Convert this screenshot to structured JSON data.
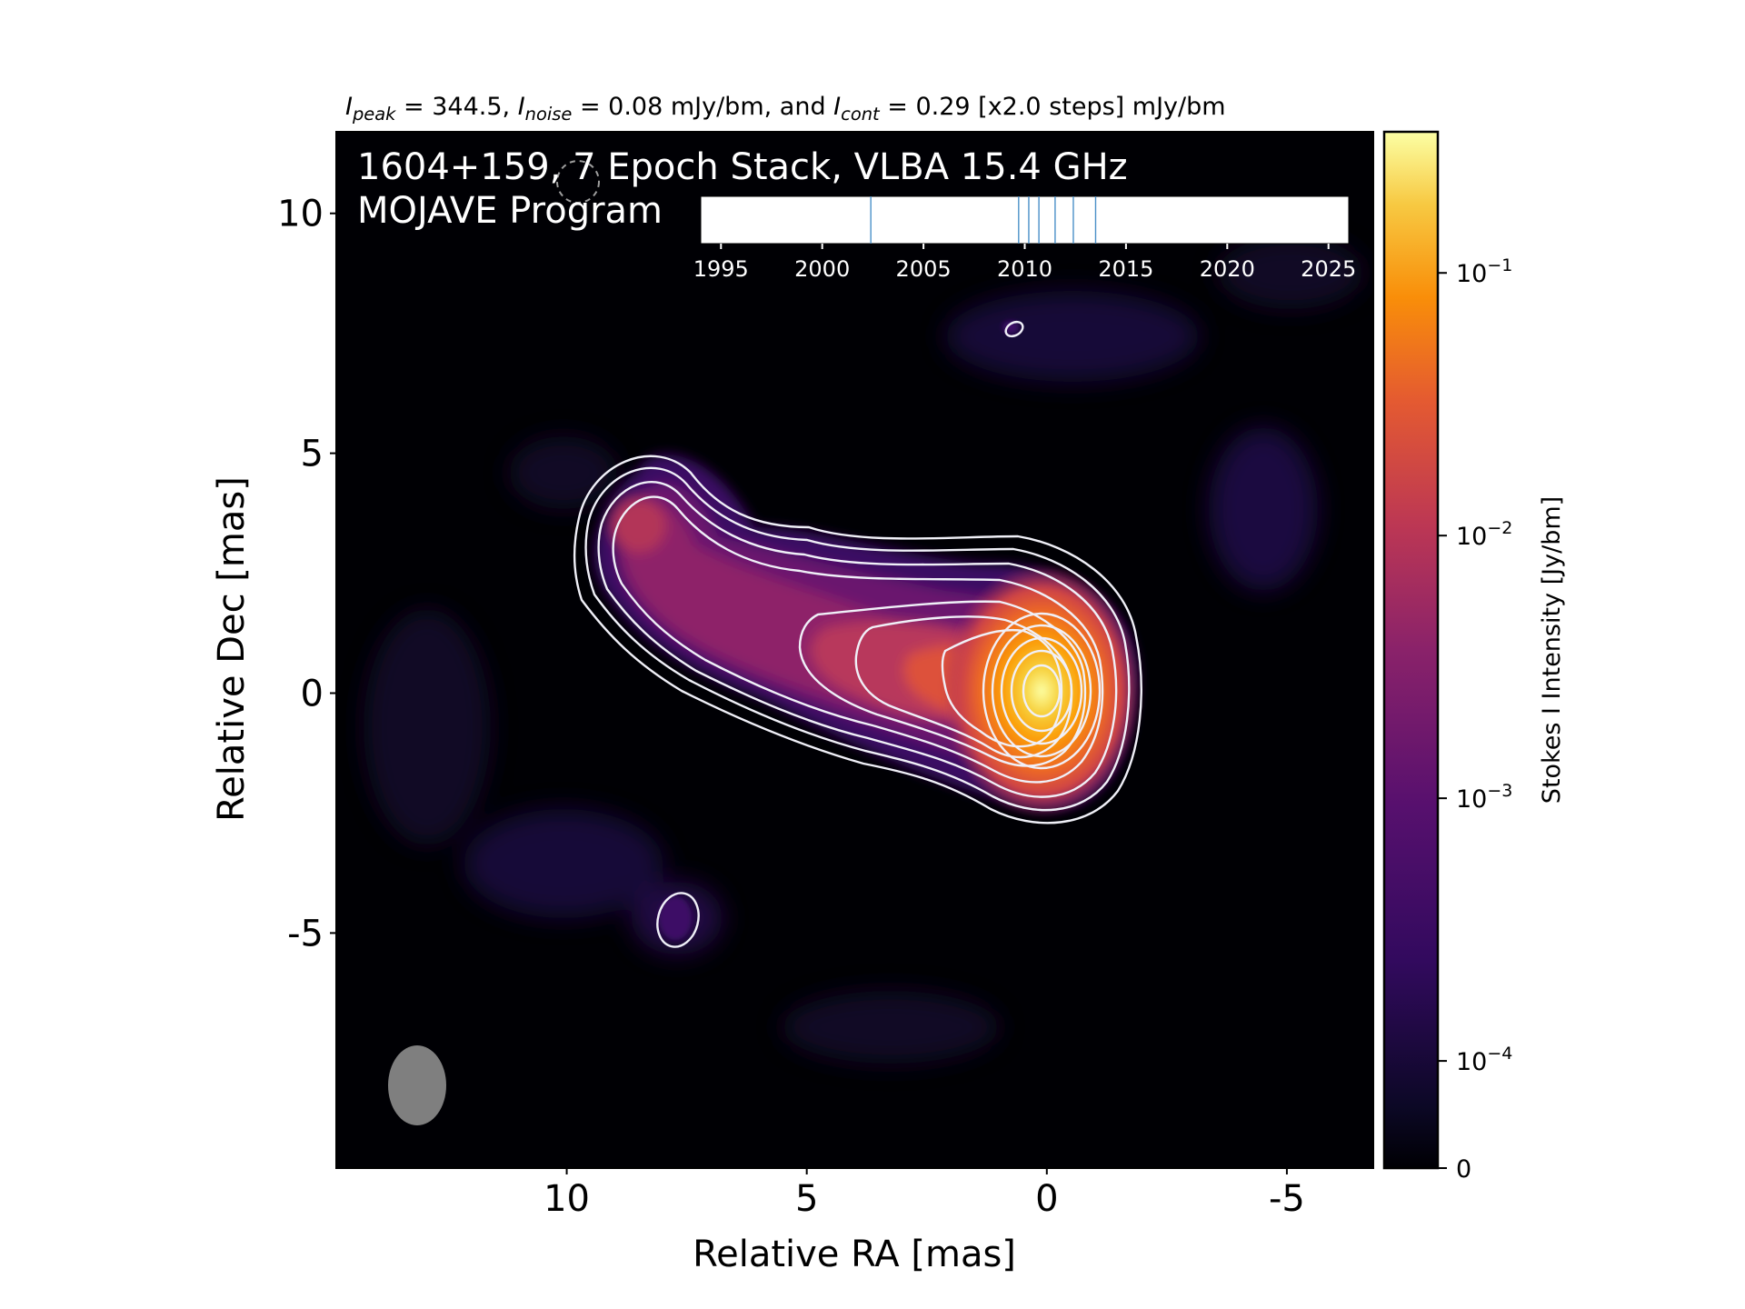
{
  "header": {
    "peak_sym": "I",
    "peak_sub": "peak",
    "peak_value": " = 344.5, ",
    "noise_sym": "I",
    "noise_sub": "noise",
    "noise_value": " = 0.08 mJy/bm, and ",
    "cont_sym": "I",
    "cont_sub": "cont",
    "cont_value": " = 0.29 [x2.0 steps] mJy/bm"
  },
  "overlay": {
    "title_line1": "1604+159, 7 Epoch Stack, VLBA 15.4 GHz",
    "title_line2": "MOJAVE Program"
  },
  "chart_data": [
    {
      "type": "heatmap",
      "description_role": "main image",
      "xlabel": "Relative RA [mas]",
      "ylabel": "Relative Dec [mas]",
      "xlim": [
        14.8,
        -6.8
      ],
      "ylim": [
        -9.9,
        11.7
      ],
      "x_ticks": [
        10,
        5,
        0,
        -5
      ],
      "x_tick_labels": [
        "10",
        "5",
        "0",
        "-5"
      ],
      "y_ticks": [
        10,
        5,
        0,
        -5
      ],
      "y_tick_labels": [
        "10",
        "5",
        "0",
        "-5"
      ],
      "background_color": "#000004",
      "contour_color": "#f0f0f8",
      "beam_color": "#7f7f7f",
      "core_position_mas": [
        0,
        0
      ],
      "colormap": "inferno"
    },
    {
      "type": "colorbar",
      "ylabel": "Stokes I Intensity [Jy/bm]",
      "scale": "log",
      "ticks": [
        0,
        0.0001,
        0.001,
        0.01,
        0.1
      ],
      "tick_labels": [
        {
          "base": "0",
          "exp": ""
        },
        {
          "base": "10",
          "exp": "−4"
        },
        {
          "base": "10",
          "exp": "−3"
        },
        {
          "base": "10",
          "exp": "−2"
        },
        {
          "base": "10",
          "exp": "−1"
        }
      ],
      "max": 0.3445
    },
    {
      "type": "timeline",
      "xlim": [
        1994,
        2026
      ],
      "x_ticks": [
        1995,
        2000,
        2005,
        2010,
        2015,
        2020,
        2025
      ],
      "x_tick_labels": [
        "1995",
        "2000",
        "2005",
        "2010",
        "2015",
        "2020",
        "2025"
      ],
      "epochs": [
        2002.4,
        2009.7,
        2010.2,
        2010.7,
        2011.5,
        2012.4,
        2013.5
      ],
      "line_color": "#4a90c8"
    }
  ]
}
